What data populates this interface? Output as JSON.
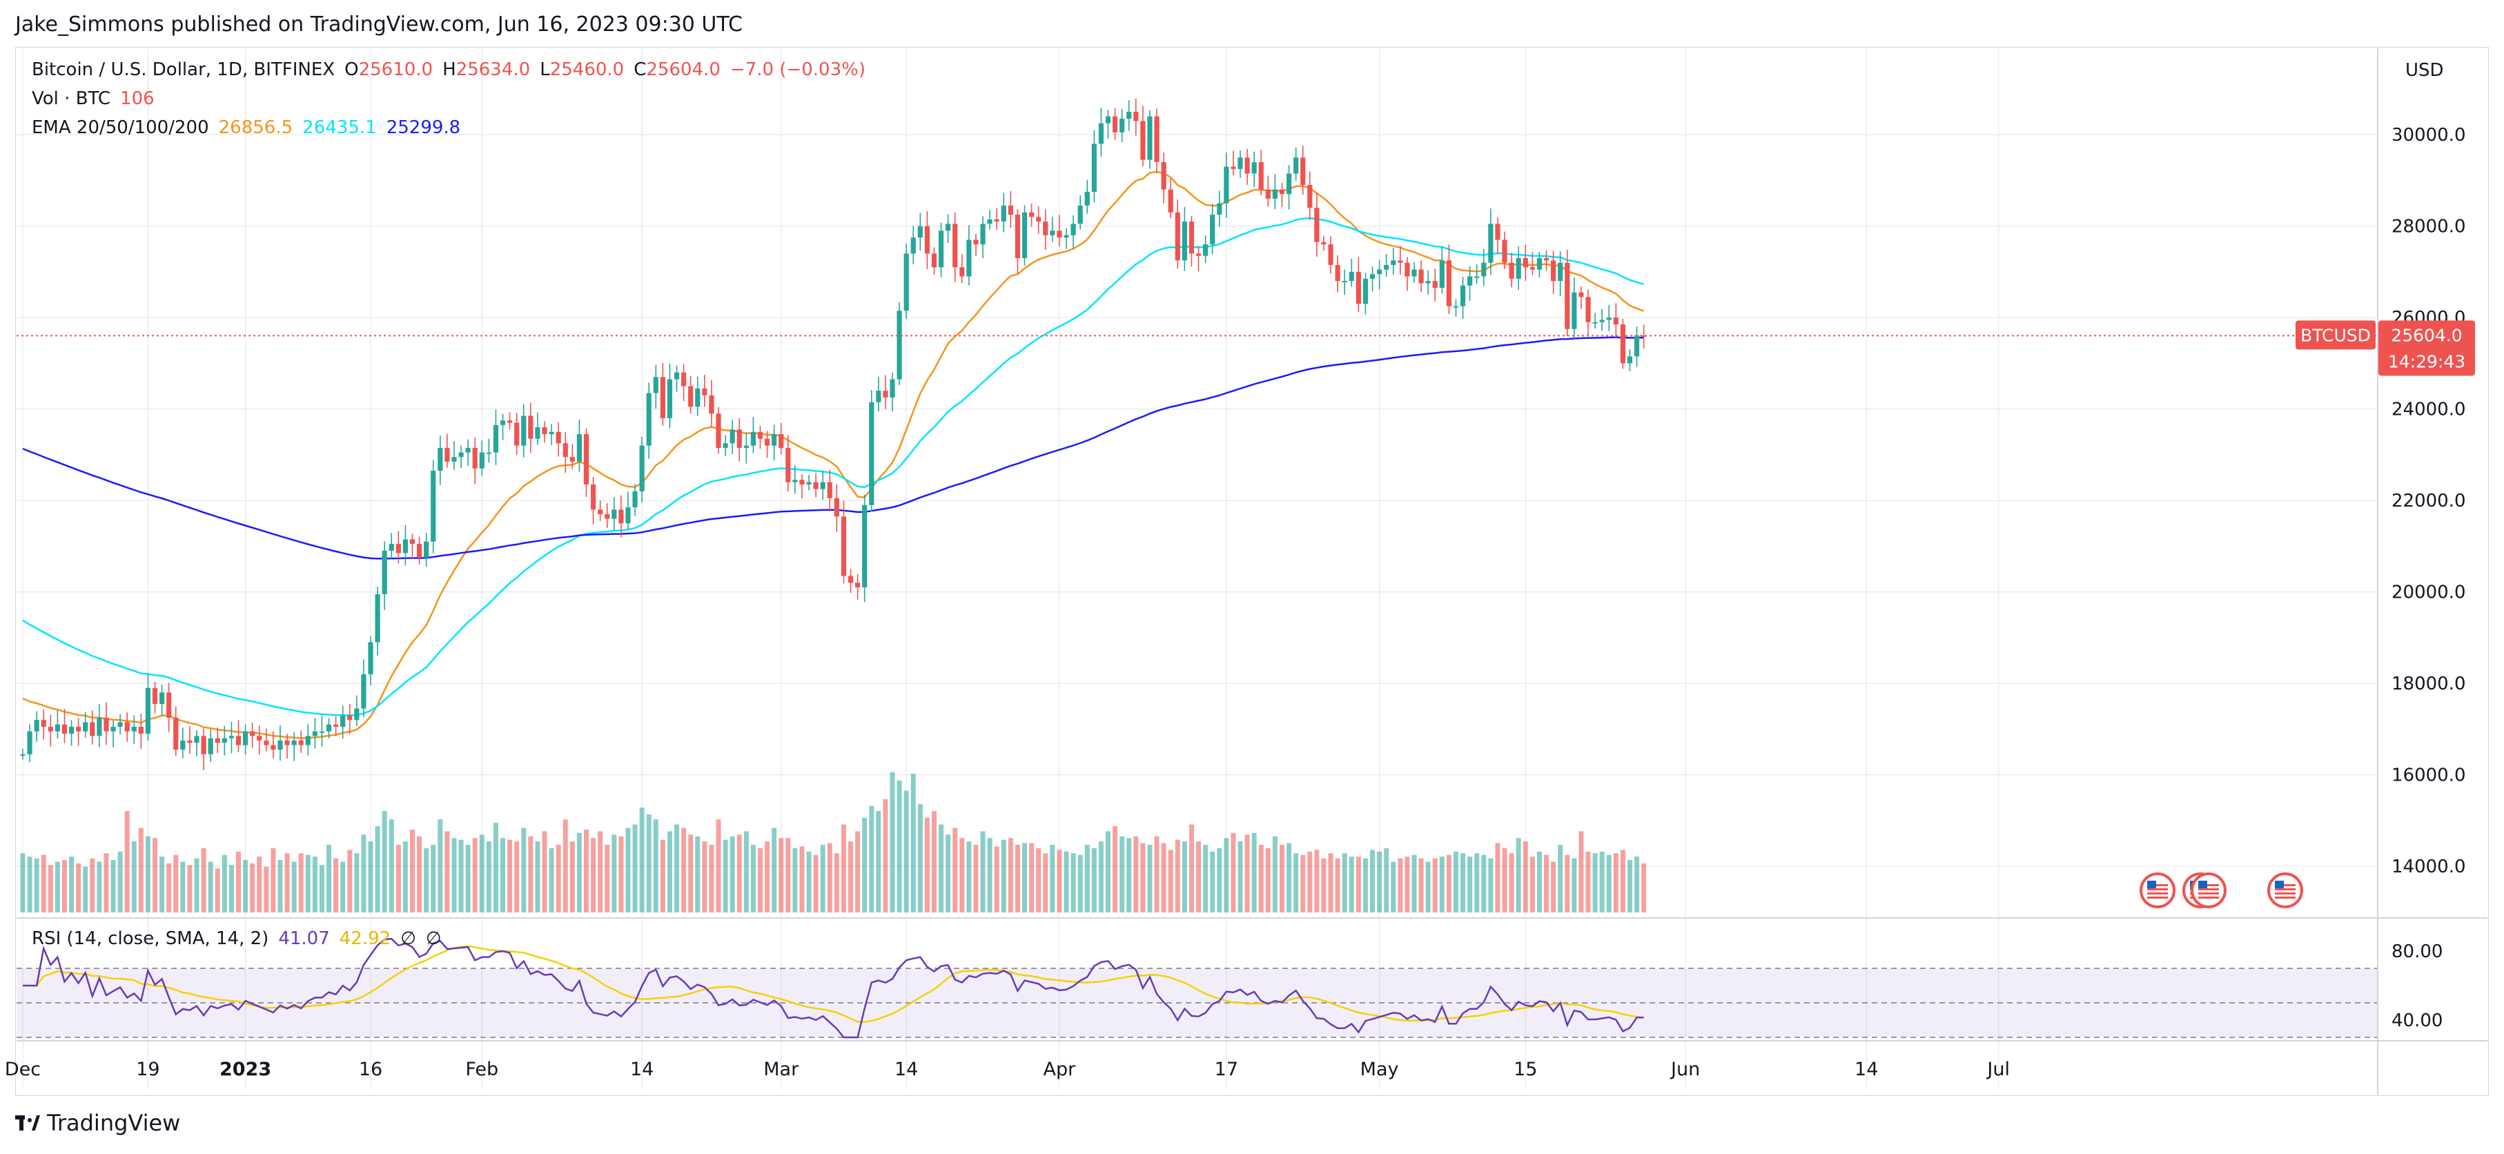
{
  "header": {
    "credit": "Jake_Simmons published on TradingView.com, Jun 16, 2023 09:30 UTC"
  },
  "legend": {
    "symbol_line": "Bitcoin / U.S. Dollar, 1D, BITFINEX",
    "o_label": "O",
    "o_value": "25610.0",
    "h_label": "H",
    "h_value": "25634.0",
    "l_label": "L",
    "l_value": "25460.0",
    "c_label": "C",
    "c_value": "25604.0",
    "change": "−7.0 (−0.03%)",
    "vol_label": "Vol · BTC",
    "vol_value": "106",
    "ema_label": "EMA 20/50/100/200",
    "ema_values": [
      "26856.5",
      "26435.1",
      "25299.8"
    ]
  },
  "rsi_legend": {
    "label": "RSI (14, close, SMA, 14, 2)",
    "rsi": "41.07",
    "sma": "42.92",
    "sym1": "∅",
    "sym2": "∅"
  },
  "price_axis": {
    "currency": "USD",
    "ticks": [
      "30000.0",
      "28000.0",
      "26000.0",
      "24000.0",
      "22000.0",
      "20000.0",
      "18000.0",
      "16000.0",
      "14000.0"
    ]
  },
  "price_tag": {
    "symbol": "BTCUSD",
    "price": "25604.0",
    "countdown": "14:29:43"
  },
  "rsi_axis": {
    "ticks": [
      "80.00",
      "40.00"
    ]
  },
  "time_axis": {
    "labels": [
      "Dec",
      "19",
      "2023",
      "16",
      "Feb",
      "14",
      "Mar",
      "14",
      "Apr",
      "17",
      "May",
      "15",
      "Jun",
      "14",
      "Jul"
    ]
  },
  "footer": {
    "brand": "TradingView"
  },
  "colors": {
    "up": "#26a69a",
    "down": "#ef5350",
    "ema20": "#f7931a",
    "ema50": "#00e5ff",
    "ema200": "#1a1aff",
    "rsi": "#673ab7",
    "rsi_sma": "#f5d200"
  },
  "chart_data": {
    "type": "candlestick",
    "title": "Bitcoin / U.S. Dollar, 1D, BITFINEX",
    "y_range": [
      12900,
      31000
    ],
    "rsi_range": [
      30,
      90
    ],
    "ohlc_start": 16450,
    "closes": [
      16450,
      16950,
      17200,
      17050,
      16950,
      17100,
      16900,
      17050,
      16950,
      17150,
      16850,
      17250,
      16950,
      17050,
      17150,
      16950,
      17050,
      16900,
      17900,
      17550,
      17800,
      17250,
      16550,
      16750,
      16700,
      16850,
      16450,
      16800,
      16700,
      16800,
      16850,
      16650,
      16950,
      16850,
      16750,
      16650,
      16550,
      16750,
      16650,
      16750,
      16650,
      16850,
      16950,
      16950,
      17100,
      17050,
      17300,
      17200,
      17450,
      18200,
      18900,
      19950,
      20900,
      21050,
      20850,
      21150,
      21050,
      20750,
      21100,
      22650,
      23150,
      22850,
      22950,
      23050,
      23150,
      22700,
      23050,
      23050,
      23650,
      23750,
      23700,
      23200,
      23850,
      23350,
      23600,
      23450,
      23500,
      23250,
      22950,
      22850,
      23450,
      22350,
      21800,
      21700,
      21600,
      21800,
      21500,
      21850,
      22200,
      23200,
      24350,
      24700,
      23800,
      24650,
      24800,
      24500,
      24050,
      24450,
      24300,
      23900,
      23150,
      23250,
      23550,
      23150,
      23200,
      23500,
      23350,
      23200,
      23450,
      23150,
      22400,
      22450,
      22350,
      22400,
      22250,
      22400,
      22050,
      21650,
      20350,
      20200,
      20100,
      21900,
      24150,
      24400,
      24250,
      24650,
      26150,
      27400,
      27750,
      28000,
      27400,
      27100,
      27900,
      28050,
      27100,
      26900,
      27700,
      27600,
      28050,
      28150,
      28100,
      28450,
      28250,
      27300,
      28300,
      28200,
      28100,
      27800,
      27900,
      27750,
      27800,
      28050,
      28450,
      28750,
      29800,
      30250,
      30400,
      30050,
      30350,
      30500,
      30300,
      29450,
      30400,
      29400,
      28800,
      28300,
      27250,
      28100,
      27400,
      27350,
      27600,
      28250,
      28500,
      29300,
      29250,
      29500,
      29150,
      29400,
      28800,
      28600,
      28800,
      28700,
      29150,
      29500,
      28900,
      28400,
      27650,
      27600,
      27150,
      26800,
      26800,
      27000,
      26300,
      26850,
      26950,
      27050,
      27150,
      27250,
      27200,
      26900,
      27050,
      26750,
      26800,
      26650,
      27250,
      26250,
      26250,
      26700,
      26900,
      26900,
      27200,
      28050,
      27700,
      27200,
      26850,
      27300,
      27100,
      27050,
      27300,
      27250,
      26800,
      27200,
      25750,
      26550,
      26450,
      25900,
      25900,
      25950,
      26000,
      25850,
      25000,
      25150,
      25610,
      25604
    ],
    "volumes": [
      35,
      33,
      32,
      34,
      28,
      30,
      31,
      33,
      29,
      27,
      32,
      30,
      35,
      31,
      36,
      60,
      42,
      50,
      45,
      44,
      33,
      29,
      34,
      30,
      28,
      32,
      38,
      30,
      26,
      34,
      28,
      36,
      31,
      29,
      33,
      27,
      38,
      31,
      35,
      30,
      35,
      34,
      33,
      28,
      40,
      32,
      30,
      37,
      35,
      46,
      42,
      51,
      60,
      55,
      40,
      42,
      49,
      45,
      38,
      40,
      55,
      48,
      44,
      43,
      40,
      44,
      46,
      42,
      53,
      44,
      43,
      42,
      50,
      45,
      42,
      48,
      38,
      40,
      55,
      42,
      47,
      49,
      44,
      48,
      40,
      46,
      45,
      50,
      52,
      62,
      58,
      55,
      43,
      48,
      52,
      50,
      46,
      45,
      42,
      40,
      55,
      43,
      45,
      46,
      48,
      40,
      38,
      42,
      50,
      44,
      44,
      38,
      39,
      36,
      34,
      40,
      41,
      35,
      52,
      42,
      48,
      56,
      63,
      60,
      67,
      83,
      78,
      72,
      82,
      64,
      56,
      60,
      52,
      46,
      50,
      44,
      42,
      40,
      48,
      44,
      39,
      43,
      44,
      40,
      41,
      41,
      38,
      35,
      40,
      37,
      36,
      35,
      34,
      40,
      38,
      42,
      48,
      51,
      45,
      44,
      45,
      41,
      40,
      45,
      41,
      37,
      43,
      42,
      52,
      42,
      40,
      36,
      38,
      44,
      47,
      42,
      46,
      47,
      40,
      38,
      45,
      40,
      41,
      35,
      34,
      36,
      37,
      32,
      35,
      32,
      35,
      33,
      33,
      32,
      37,
      36,
      38,
      30,
      32,
      33,
      34,
      32,
      30,
      32,
      33,
      34,
      36,
      35,
      33,
      35,
      34,
      32,
      41,
      38,
      35,
      44,
      42,
      33,
      36,
      34,
      30,
      40,
      34,
      32,
      48,
      36,
      35,
      36,
      34,
      35,
      37,
      31,
      33,
      29,
      34,
      32
    ]
  }
}
